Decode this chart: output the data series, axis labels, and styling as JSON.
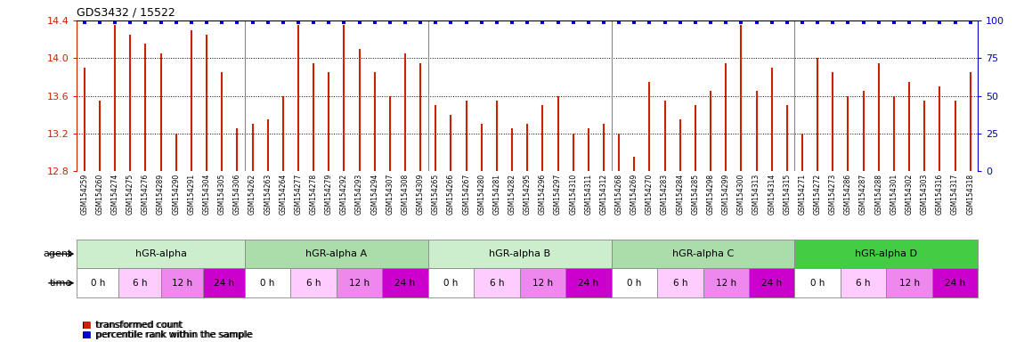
{
  "title": "GDS3432 / 15522",
  "bar_color": "#cc2200",
  "dot_color": "#0000cc",
  "ylim_left": [
    12.8,
    14.4
  ],
  "ylim_right": [
    0,
    100
  ],
  "yticks_left": [
    12.8,
    13.2,
    13.6,
    14.0,
    14.4
  ],
  "yticks_right": [
    0,
    25,
    50,
    75,
    100
  ],
  "baseline": 12.8,
  "categories": [
    "GSM154259",
    "GSM154260",
    "GSM154274",
    "GSM154275",
    "GSM154276",
    "GSM154289",
    "GSM154290",
    "GSM154291",
    "GSM154304",
    "GSM154305",
    "GSM154306",
    "GSM154262",
    "GSM154263",
    "GSM154264",
    "GSM154277",
    "GSM154278",
    "GSM154279",
    "GSM154292",
    "GSM154293",
    "GSM154294",
    "GSM154307",
    "GSM154308",
    "GSM154309",
    "GSM154265",
    "GSM154266",
    "GSM154267",
    "GSM154280",
    "GSM154281",
    "GSM154282",
    "GSM154295",
    "GSM154296",
    "GSM154297",
    "GSM154310",
    "GSM154311",
    "GSM154312",
    "GSM154268",
    "GSM154269",
    "GSM154270",
    "GSM154283",
    "GSM154284",
    "GSM154285",
    "GSM154298",
    "GSM154299",
    "GSM154300",
    "GSM154313",
    "GSM154314",
    "GSM154315",
    "GSM154271",
    "GSM154272",
    "GSM154273",
    "GSM154286",
    "GSM154287",
    "GSM154288",
    "GSM154301",
    "GSM154302",
    "GSM154303",
    "GSM154316",
    "GSM154317",
    "GSM154318"
  ],
  "bar_values": [
    13.9,
    13.55,
    14.35,
    14.25,
    14.15,
    14.05,
    13.2,
    14.3,
    14.25,
    13.85,
    13.25,
    13.3,
    13.35,
    13.6,
    14.35,
    13.95,
    13.85,
    14.35,
    14.1,
    13.85,
    13.6,
    14.05,
    13.95,
    13.5,
    13.4,
    13.55,
    13.3,
    13.55,
    13.25,
    13.3,
    13.5,
    13.6,
    13.2,
    13.25,
    13.3,
    13.2,
    12.95,
    13.75,
    13.55,
    13.35,
    13.5,
    13.65,
    13.95,
    14.35,
    13.65,
    13.9,
    13.5,
    13.2,
    14.0,
    13.85,
    13.6,
    13.65,
    13.95,
    13.6,
    13.75,
    13.55,
    13.7,
    13.55,
    13.85
  ],
  "dot_values": [
    99,
    99,
    99,
    99,
    99,
    99,
    99,
    99,
    99,
    99,
    99,
    99,
    99,
    99,
    99,
    99,
    99,
    99,
    99,
    99,
    99,
    99,
    99,
    99,
    99,
    99,
    99,
    99,
    99,
    99,
    99,
    99,
    99,
    99,
    99,
    99,
    99,
    99,
    99,
    99,
    99,
    99,
    99,
    99,
    99,
    99,
    99,
    99,
    99,
    99,
    99,
    99,
    99,
    99,
    99,
    99,
    99,
    99,
    99
  ],
  "agent_groups": [
    {
      "label": "hGR-alpha",
      "start": 0,
      "end": 11,
      "color": "#cceecc"
    },
    {
      "label": "hGR-alpha A",
      "start": 11,
      "end": 23,
      "color": "#aaddaa"
    },
    {
      "label": "hGR-alpha B",
      "start": 23,
      "end": 35,
      "color": "#cceecc"
    },
    {
      "label": "hGR-alpha C",
      "start": 35,
      "end": 47,
      "color": "#aaddaa"
    },
    {
      "label": "hGR-alpha D",
      "start": 47,
      "end": 59,
      "color": "#44cc44"
    }
  ],
  "time_labels_per_group": [
    "0 h",
    "6 h",
    "12 h",
    "24 h"
  ],
  "time_colors": [
    "#ffffff",
    "#ffccff",
    "#ee88ee",
    "#cc00cc"
  ],
  "group_sizes": [
    11,
    12,
    12,
    12,
    12
  ],
  "group_starts": [
    0,
    11,
    23,
    35,
    47
  ],
  "background_color": "#ffffff"
}
